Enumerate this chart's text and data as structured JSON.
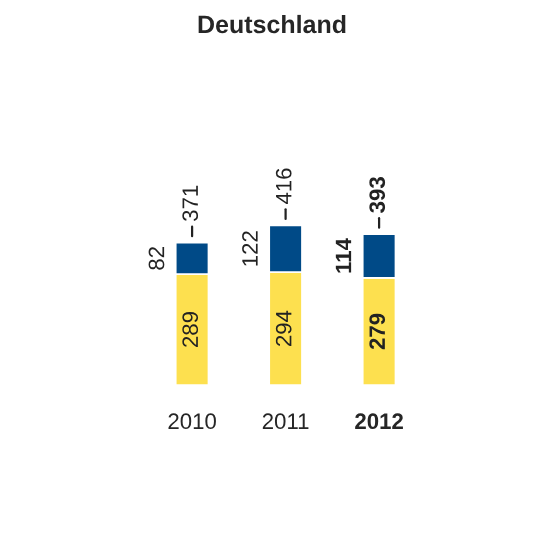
{
  "chart_data": {
    "type": "bar",
    "title": "Deutschland",
    "categories": [
      "2010",
      "2011",
      "2012"
    ],
    "stacked": true,
    "data_labels": true,
    "series": [
      {
        "color": "#fde04f",
        "values": [
          289,
          294,
          279
        ]
      },
      {
        "color": "#004a87",
        "values": [
          82,
          122,
          114
        ]
      }
    ],
    "totals": [
      "371",
      "416",
      "393"
    ],
    "legend": false,
    "grid": false
  }
}
